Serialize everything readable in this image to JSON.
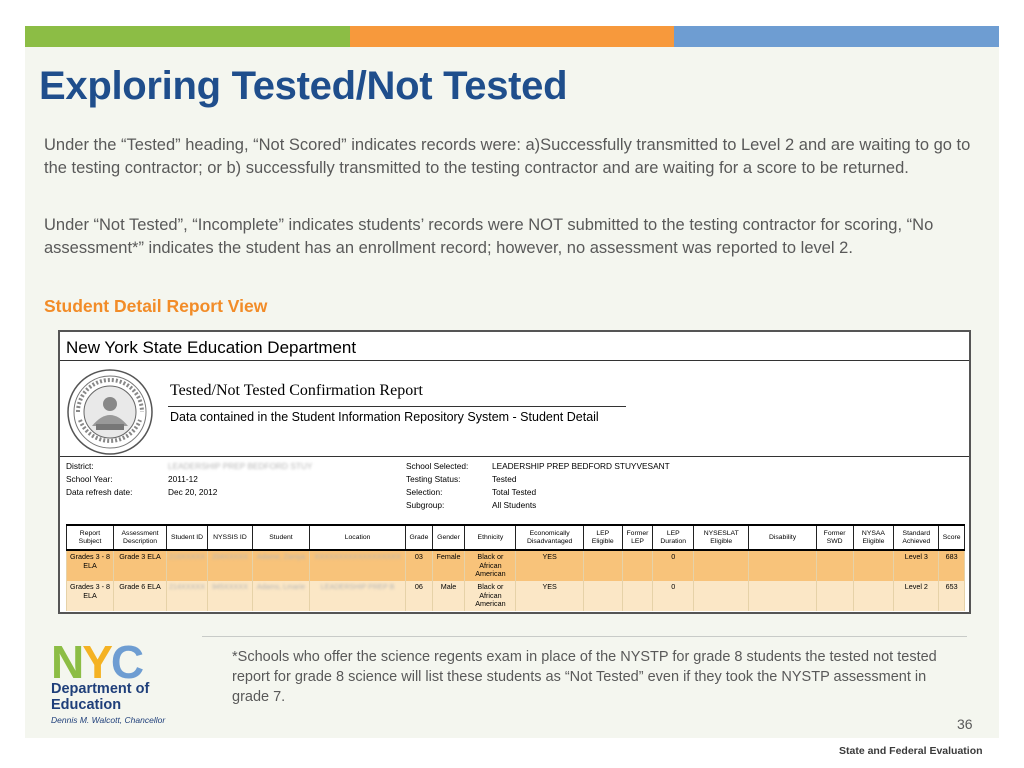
{
  "slide": {
    "title": "Exploring Tested/Not Tested",
    "paragraph1": "Under the “Tested” heading, “Not Scored” indicates records were: a)Successfully transmitted to Level 2 and are waiting to go to the testing contractor; or b) successfully transmitted to the testing contractor and are waiting for a score to be returned.",
    "paragraph2": "Under “Not Tested”, “Incomplete” indicates students’ records were NOT submitted to the testing contractor for scoring, “No assessment*” indicates the student has an enrollment record; however, no assessment was reported to level 2.",
    "subheading": "Student Detail Report View",
    "footnote": "*Schools who offer the science regents exam in place of the NYSTP for grade 8 students the tested not tested report for grade 8 science will list these students as “Not Tested” even if they took the NYSTP assessment in grade 7.",
    "page_number": "36",
    "footer": "State and Federal Evaluation",
    "bar_colors": [
      "#8cbd45",
      "#f7993c",
      "#6e9dd2"
    ]
  },
  "report": {
    "org": "New York State Education Department",
    "title": "Tested/Not Tested Confirmation Report",
    "subtitle": "Data contained in the Student Information Repository System - Student Detail",
    "left_meta": [
      {
        "label": "District:",
        "value": "LEADERSHIP PREP BEDFORD STUY"
      },
      {
        "label": "School Year:",
        "value": "2011-12"
      },
      {
        "label": "Data refresh date:",
        "value": "Dec 20, 2012"
      }
    ],
    "right_meta": [
      {
        "label": "School Selected:",
        "value": "LEADERSHIP PREP BEDFORD STUYVESANT"
      },
      {
        "label": "Testing Status:",
        "value": "Tested"
      },
      {
        "label": "Selection:",
        "value": "Total Tested"
      },
      {
        "label": "Subgroup:",
        "value": "All Students"
      }
    ],
    "columns": [
      "Report Subject",
      "Assessment Description",
      "Student ID",
      "NYSSIS ID",
      "Student",
      "Location",
      "Grade",
      "Gender",
      "Ethnicity",
      "Economically Disadvantaged",
      "LEP Eligible",
      "Former LEP",
      "LEP Duration",
      "NYSESLAT Eligible",
      "Disability",
      "Former SWD",
      "NYSAA Eligible",
      "Standard Achieved",
      "Score"
    ],
    "rows": [
      [
        "Grades 3 - 8 ELA",
        "Grade 3 ELA",
        "216XXXXX",
        "204XXXXX",
        "Adame, Zaniya",
        "XXXXXXXXXXXXXXXXXX",
        "03",
        "Female",
        "Black or African American",
        "YES",
        "",
        "",
        "0",
        "",
        "",
        "",
        "",
        "Level 3",
        "683"
      ],
      [
        "Grades 3 - 8 ELA",
        "Grade 6 ELA",
        "214XXXXX",
        "945XXXXX",
        "Adams, Lmarie",
        "LEADERSHIP PREP B",
        "06",
        "Male",
        "Black or African American",
        "YES",
        "",
        "",
        "0",
        "",
        "",
        "",
        "",
        "Level 2",
        "653"
      ]
    ]
  },
  "logo": {
    "letters": "NYC",
    "dept_line1": "Department of",
    "dept_line2": "Education",
    "chancellor": "Dennis M. Walcott, Chancellor",
    "colors": {
      "green": "#8cbd45",
      "yellow": "#f4b223",
      "blue": "#6e9dd2",
      "navy": "#1f3f7a"
    }
  }
}
